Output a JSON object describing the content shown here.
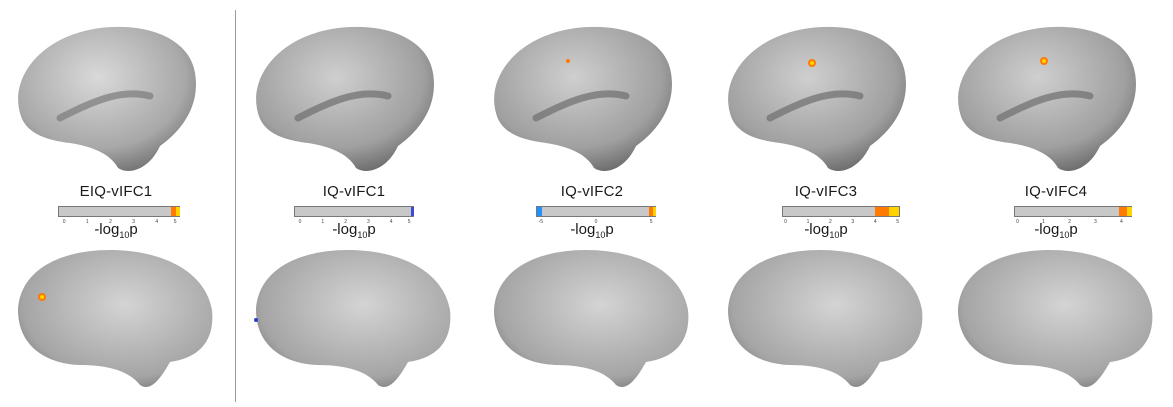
{
  "panels": [
    {
      "id": "eiq-vifc1",
      "label": "EIQ-vIFC1",
      "ticks": [
        "0",
        "1",
        "2",
        "3",
        "4",
        "5"
      ],
      "xlabel": "-log",
      "xsub": "10",
      "xend": "p"
    },
    {
      "id": "iq-vifc1",
      "label": "IQ-vIFC1",
      "ticks": [
        "0",
        "1",
        "2",
        "3",
        "4",
        "5"
      ],
      "xlabel": "-log",
      "xsub": "10",
      "xend": "p"
    },
    {
      "id": "iq-vifc2",
      "label": "IQ-vIFC2",
      "ticks": [
        "-5",
        "0",
        "5"
      ],
      "xlabel": "-log",
      "xsub": "10",
      "xend": "p"
    },
    {
      "id": "iq-vifc3",
      "label": "IQ-vIFC3",
      "ticks": [
        "0",
        "1",
        "2",
        "3",
        "4",
        "5"
      ],
      "xlabel": "-log",
      "xsub": "10",
      "xend": "p"
    },
    {
      "id": "iq-vifc4",
      "label": "IQ-vIFC4",
      "ticks": [
        "0",
        "1",
        "2",
        "3",
        "4"
      ],
      "xlabel": "-log",
      "xsub": "10",
      "xend": "p"
    }
  ],
  "colors": {
    "cortex": "#bdbdbd",
    "hot": "#ff7a00",
    "hot_tip": "#ffd200",
    "cold": "#1e90ff",
    "bar_bg": "#c8c8c8"
  }
}
